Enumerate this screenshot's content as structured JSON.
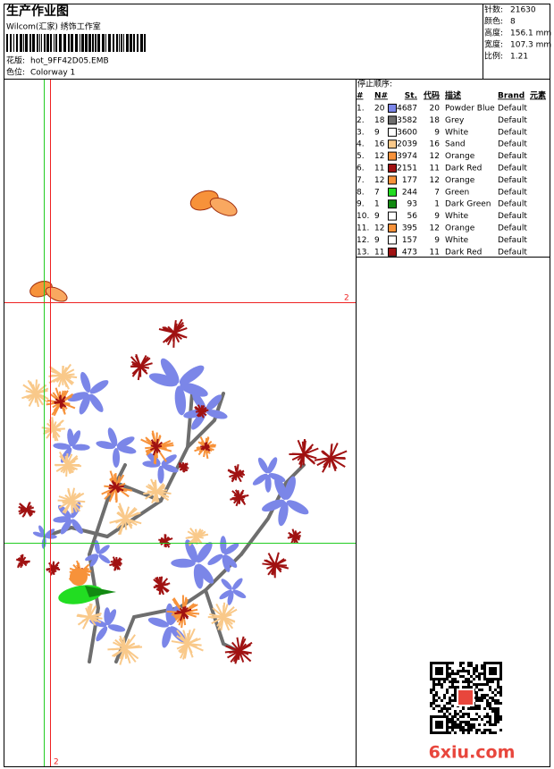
{
  "header": {
    "title": "生产作业图",
    "studio": "Wilcom(汇家) 绣饰工作室",
    "design_label": "花版:",
    "design": "hot_9FF42D05.EMB",
    "colorway_label": "色位:",
    "colorway": "Colorway 1"
  },
  "info": [
    {
      "label": "针数:",
      "value": "21630"
    },
    {
      "label": "颜色:",
      "value": "8"
    },
    {
      "label": "高度:",
      "value": "156.1 mm"
    },
    {
      "label": "宽度:",
      "value": "107.3 mm"
    },
    {
      "label": "比例:",
      "value": "1.21"
    }
  ],
  "guides": {
    "horizontal_label": "2",
    "vertical_label": "2"
  },
  "table": {
    "title": "停止顺序:",
    "columns": [
      "#",
      "N#",
      "St.",
      "代码",
      "描述",
      "Brand",
      "元素"
    ],
    "rows": [
      {
        "n": "1.",
        "needle": "20",
        "color": "#7b86e8",
        "stitches": "4687",
        "code": "20",
        "desc": "Powder Blue",
        "brand": "Default"
      },
      {
        "n": "2.",
        "needle": "18",
        "color": "#6e6e6e",
        "stitches": "3582",
        "code": "18",
        "desc": "Grey",
        "brand": "Default"
      },
      {
        "n": "3.",
        "needle": "9",
        "color": "#ffffff",
        "stitches": "3600",
        "code": "9",
        "desc": "White",
        "brand": "Default"
      },
      {
        "n": "4.",
        "needle": "16",
        "color": "#f9c98a",
        "stitches": "2039",
        "code": "16",
        "desc": "Sand",
        "brand": "Default"
      },
      {
        "n": "5.",
        "needle": "12",
        "color": "#f7923a",
        "stitches": "3974",
        "code": "12",
        "desc": "Orange",
        "brand": "Default"
      },
      {
        "n": "6.",
        "needle": "11",
        "color": "#a01212",
        "stitches": "2151",
        "code": "11",
        "desc": "Dark Red",
        "brand": "Default"
      },
      {
        "n": "7.",
        "needle": "12",
        "color": "#f7923a",
        "stitches": "177",
        "code": "12",
        "desc": "Orange",
        "brand": "Default"
      },
      {
        "n": "8.",
        "needle": "7",
        "color": "#22dd22",
        "stitches": "244",
        "code": "7",
        "desc": "Green",
        "brand": "Default"
      },
      {
        "n": "9.",
        "needle": "1",
        "color": "#128a12",
        "stitches": "93",
        "code": "1",
        "desc": "Dark Green",
        "brand": "Default"
      },
      {
        "n": "10.",
        "needle": "9",
        "color": "#ffffff",
        "stitches": "56",
        "code": "9",
        "desc": "White",
        "brand": "Default"
      },
      {
        "n": "11.",
        "needle": "12",
        "color": "#f7923a",
        "stitches": "395",
        "code": "12",
        "desc": "Orange",
        "brand": "Default"
      },
      {
        "n": "12.",
        "needle": "9",
        "color": "#ffffff",
        "stitches": "157",
        "code": "9",
        "desc": "White",
        "brand": "Default"
      },
      {
        "n": "13.",
        "needle": "11",
        "color": "#a01212",
        "stitches": "473",
        "code": "11",
        "desc": "Dark Red",
        "brand": "Default"
      }
    ]
  },
  "watermark": "6xiu.com"
}
